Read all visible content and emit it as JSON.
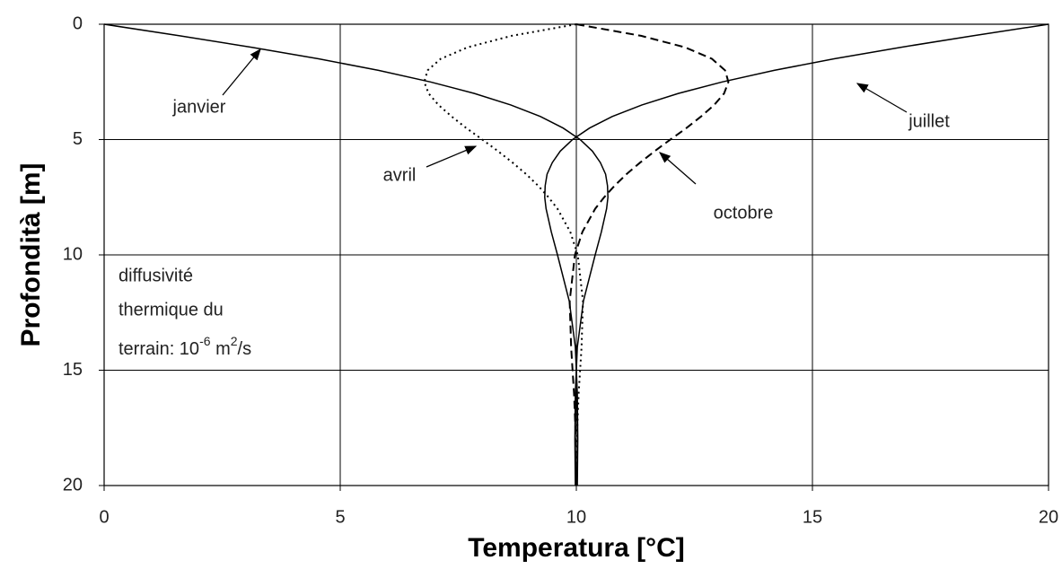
{
  "chart_data": {
    "type": "line",
    "xlabel": "Temperatura [°C]",
    "ylabel": "Profondità [m]",
    "depth": [
      0,
      0.5,
      1,
      1.5,
      2,
      2.5,
      3,
      3.5,
      4,
      4.5,
      5,
      5.5,
      6,
      6.5,
      7,
      7.5,
      8,
      9,
      10,
      12,
      14,
      16,
      18,
      20
    ],
    "series": [
      {
        "name": "janvier",
        "color": "#000000",
        "dash": "solid",
        "values": [
          0,
          1.6,
          3.13,
          4.54,
          5.81,
          6.91,
          7.84,
          8.61,
          9.24,
          9.72,
          10.08,
          10.34,
          10.51,
          10.62,
          10.66,
          10.67,
          10.64,
          10.53,
          10.4,
          10.15,
          10.02,
          9.98,
          9.97,
          9.98
        ]
      },
      {
        "name": "avril",
        "color": "#000000",
        "dash": "dotted",
        "values": [
          10,
          8.63,
          7.7,
          7.13,
          6.85,
          6.78,
          6.87,
          7.08,
          7.36,
          7.67,
          8.01,
          8.34,
          8.65,
          8.94,
          9.19,
          9.41,
          9.6,
          9.87,
          10.03,
          10.14,
          10.11,
          10.05,
          10.01,
          10
        ]
      },
      {
        "name": "juillet",
        "color": "#000000",
        "dash": "solid",
        "values": [
          20,
          18.4,
          16.87,
          15.46,
          14.19,
          13.09,
          12.16,
          11.39,
          10.76,
          10.28,
          9.92,
          9.66,
          9.49,
          9.38,
          9.34,
          9.33,
          9.36,
          9.47,
          9.6,
          9.85,
          9.98,
          10.02,
          10.03,
          10.02
        ]
      },
      {
        "name": "octobre",
        "color": "#000000",
        "dash": "dashed",
        "values": [
          10,
          11.37,
          12.3,
          12.87,
          13.15,
          13.22,
          13.13,
          12.92,
          12.64,
          12.33,
          11.99,
          11.66,
          11.35,
          11.06,
          10.81,
          10.59,
          10.4,
          10.13,
          9.97,
          9.86,
          9.89,
          9.95,
          9.99,
          10
        ]
      }
    ],
    "xlim": [
      0,
      20
    ],
    "xticks": [
      0,
      5,
      10,
      15,
      20
    ],
    "ylim": [
      0,
      20
    ],
    "yticks": [
      0,
      5,
      10,
      15,
      20
    ],
    "yinverted": true,
    "grid": true,
    "note": {
      "line1": "diffusivité",
      "line2": "thermique du",
      "line3": "terrain: 10",
      "exp1": "-6",
      "unit": " m",
      "exp2": "2",
      "tail": "/s"
    }
  }
}
